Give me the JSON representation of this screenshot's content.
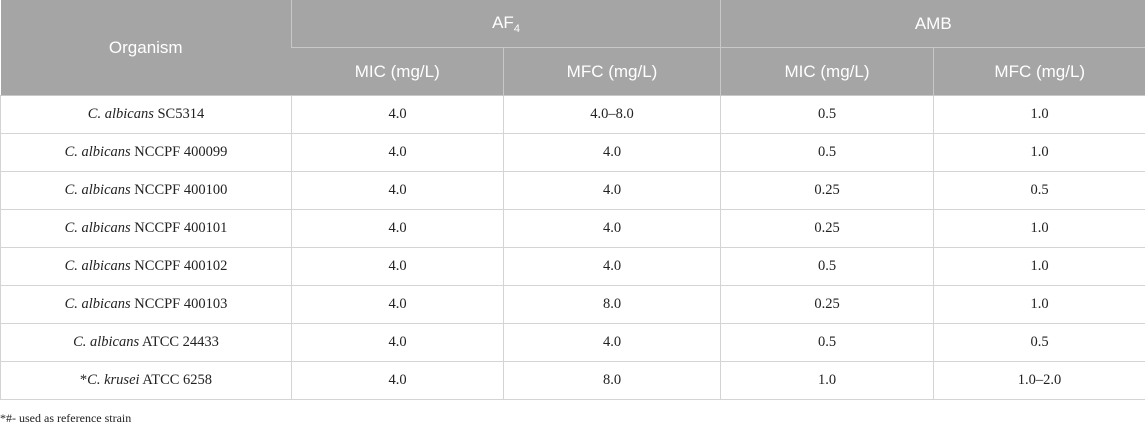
{
  "table": {
    "header": {
      "organism": "Organism",
      "group1": {
        "name": "AF",
        "subscript": "4"
      },
      "group2": "AMB",
      "columns": [
        "MIC (mg/L)",
        "MFC (mg/L)",
        "MIC (mg/L)",
        "MFC (mg/L)"
      ]
    },
    "rows": [
      {
        "species": "C. albicans",
        "strain": "SC5314",
        "cells": [
          "4.0",
          "4.0–8.0",
          "0.5",
          "1.0"
        ]
      },
      {
        "species": "C. albicans",
        "strain": "NCCPF 400099",
        "cells": [
          "4.0",
          "4.0",
          "0.5",
          "1.0"
        ]
      },
      {
        "species": "C. albicans",
        "strain": "NCCPF 400100",
        "cells": [
          "4.0",
          "4.0",
          "0.25",
          "0.5"
        ]
      },
      {
        "species": "C. albicans",
        "strain": "NCCPF 400101",
        "cells": [
          "4.0",
          "4.0",
          "0.25",
          "1.0"
        ]
      },
      {
        "species": "C. albicans",
        "strain": "NCCPF 400102",
        "cells": [
          "4.0",
          "4.0",
          "0.5",
          "1.0"
        ]
      },
      {
        "species": "C. albicans",
        "strain": "NCCPF 400103",
        "cells": [
          "4.0",
          "8.0",
          "0.25",
          "1.0"
        ]
      },
      {
        "species": "C. albicans",
        "strain": "ATCC 24433",
        "cells": [
          "4.0",
          "4.0",
          "0.5",
          "0.5"
        ]
      },
      {
        "marker": "*",
        "species": "C. krusei",
        "strain": "ATCC 6258",
        "cells": [
          "4.0",
          "8.0",
          "1.0",
          "1.0–2.0"
        ]
      }
    ],
    "footnote": "*#- used as reference strain"
  }
}
